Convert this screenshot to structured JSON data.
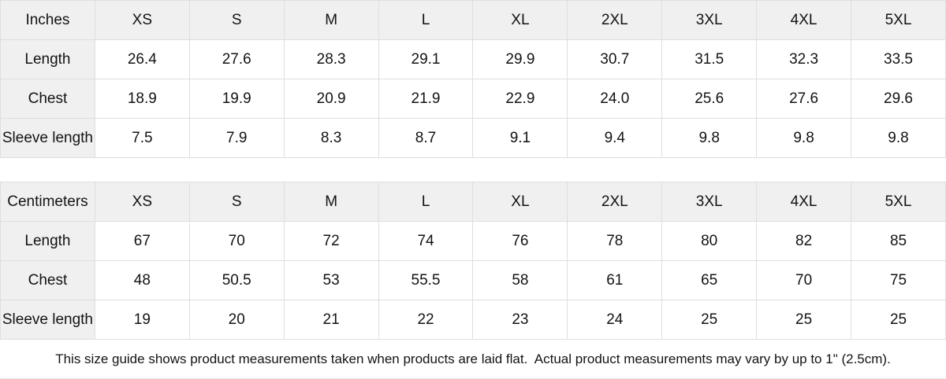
{
  "colors": {
    "header_bg": "#f0f0f0",
    "border": "#dedede",
    "text": "#131313"
  },
  "tables": [
    {
      "unit_label": "Inches",
      "sizes": [
        "XS",
        "S",
        "M",
        "L",
        "XL",
        "2XL",
        "3XL",
        "4XL",
        "5XL"
      ],
      "rows": [
        {
          "label": "Length",
          "values": [
            "26.4",
            "27.6",
            "28.3",
            "29.1",
            "29.9",
            "30.7",
            "31.5",
            "32.3",
            "33.5"
          ]
        },
        {
          "label": "Chest",
          "values": [
            "18.9",
            "19.9",
            "20.9",
            "21.9",
            "22.9",
            "24.0",
            "25.6",
            "27.6",
            "29.6"
          ]
        },
        {
          "label": "Sleeve length",
          "values": [
            "7.5",
            "7.9",
            "8.3",
            "8.7",
            "9.1",
            "9.4",
            "9.8",
            "9.8",
            "9.8"
          ]
        }
      ]
    },
    {
      "unit_label": "Centimeters",
      "sizes": [
        "XS",
        "S",
        "M",
        "L",
        "XL",
        "2XL",
        "3XL",
        "4XL",
        "5XL"
      ],
      "rows": [
        {
          "label": "Length",
          "values": [
            "67",
            "70",
            "72",
            "74",
            "76",
            "78",
            "80",
            "82",
            "85"
          ]
        },
        {
          "label": "Chest",
          "values": [
            "48",
            "50.5",
            "53",
            "55.5",
            "58",
            "61",
            "65",
            "70",
            "75"
          ]
        },
        {
          "label": "Sleeve length",
          "values": [
            "19",
            "20",
            "21",
            "22",
            "23",
            "24",
            "25",
            "25",
            "25"
          ]
        }
      ]
    }
  ],
  "footer": {
    "note": "This size guide shows product measurements taken when products are laid flat.  Actual product measurements may vary by up to 1\" (2.5cm)."
  }
}
